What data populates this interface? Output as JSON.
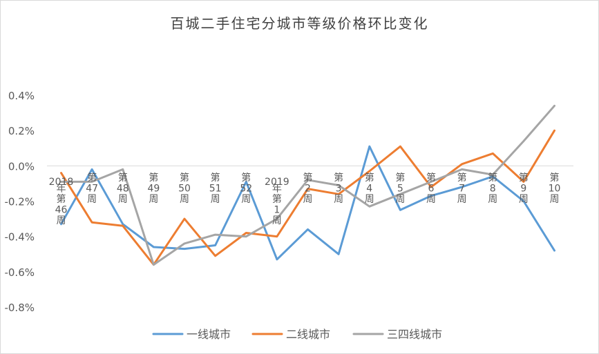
{
  "chart_data": {
    "type": "line",
    "title": "百城二手住宅分城市等级价格环比变化",
    "xlabel": "",
    "ylabel": "",
    "ylim": [
      -0.8,
      0.4
    ],
    "yticks": [
      "0.4%",
      "0.2%",
      "0.0%",
      "-0.2%",
      "-0.4%",
      "-0.6%",
      "-0.8%"
    ],
    "ytick_values": [
      0.4,
      0.2,
      0.0,
      -0.2,
      -0.4,
      -0.6,
      -0.8
    ],
    "grid": false,
    "legend_position": "bottom",
    "categories": [
      "2018年第46周",
      "第47周",
      "第48周",
      "第49周",
      "第50周",
      "第51周",
      "第52周",
      "2019年第1周",
      "第2周",
      "第3周",
      "第4周",
      "第5周",
      "第6周",
      "第7周",
      "第8周",
      "第9周",
      "第10周"
    ],
    "series": [
      {
        "name": "一线城市",
        "color": "#5b9bd5",
        "values": [
          -0.33,
          -0.02,
          -0.33,
          -0.46,
          -0.47,
          -0.45,
          -0.09,
          -0.53,
          -0.36,
          -0.5,
          0.11,
          -0.25,
          -0.17,
          -0.12,
          -0.06,
          -0.2,
          -0.48
        ]
      },
      {
        "name": "二线城市",
        "color": "#ed7d31",
        "values": [
          -0.04,
          -0.32,
          -0.34,
          -0.56,
          -0.3,
          -0.51,
          -0.38,
          -0.4,
          -0.13,
          -0.16,
          -0.03,
          0.11,
          -0.12,
          0.01,
          0.07,
          -0.09,
          0.2
        ]
      },
      {
        "name": "三四线城市",
        "color": "#a5a5a5",
        "values": [
          -0.09,
          -0.09,
          -0.02,
          -0.56,
          -0.44,
          -0.39,
          -0.4,
          -0.3,
          -0.08,
          -0.11,
          -0.23,
          -0.16,
          -0.09,
          -0.02,
          -0.05,
          0.14,
          0.34
        ]
      }
    ]
  }
}
